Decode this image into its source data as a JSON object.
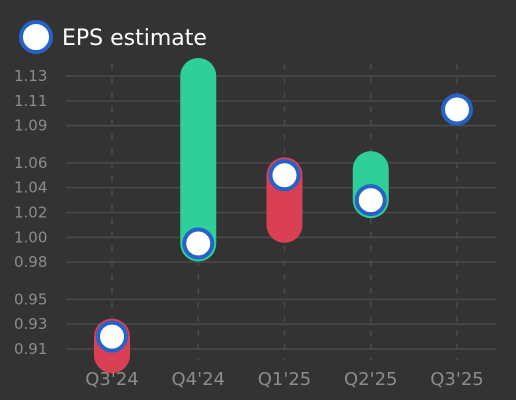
{
  "chart_data": {
    "type": "range-bar-with-markers",
    "legend": {
      "label": "EPS estimate",
      "position": "top-left"
    },
    "categories": [
      "Q3'24",
      "Q4'24",
      "Q1'25",
      "Q2'25",
      "Q3'25"
    ],
    "yticks": [
      "0.91",
      "0.93",
      "0.95",
      "0.98",
      "1.00",
      "1.02",
      "1.04",
      "1.06",
      "1.09",
      "1.11",
      "1.13"
    ],
    "ytick_values": [
      0.91,
      0.93,
      0.95,
      0.98,
      1.0,
      1.02,
      1.04,
      1.06,
      1.09,
      1.11,
      1.13
    ],
    "ylim": [
      0.9,
      1.14
    ],
    "grid": true,
    "series": [
      {
        "name": "EPS estimate",
        "values": [
          0.92,
          0.995,
          1.05,
          1.03,
          1.103
        ]
      }
    ],
    "actual": [
      0.905,
      1.13,
      1.01,
      1.055,
      null
    ],
    "colors": {
      "beat": "#2ecf98",
      "miss": "#d93f55",
      "marker_fill": "#ffffff",
      "marker_stroke": "#2563c9",
      "grid": "#4a4a4a",
      "label": "#8c8c8c"
    }
  }
}
